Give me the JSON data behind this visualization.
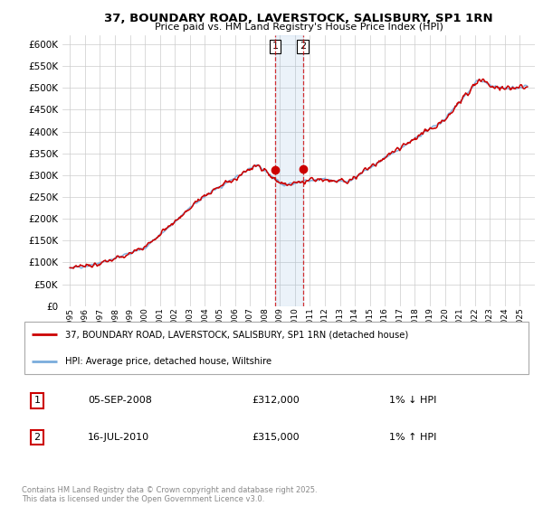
{
  "title": "37, BOUNDARY ROAD, LAVERSTOCK, SALISBURY, SP1 1RN",
  "subtitle": "Price paid vs. HM Land Registry's House Price Index (HPI)",
  "legend_line1": "37, BOUNDARY ROAD, LAVERSTOCK, SALISBURY, SP1 1RN (detached house)",
  "legend_line2": "HPI: Average price, detached house, Wiltshire",
  "annotation1_date": "05-SEP-2008",
  "annotation1_price": "£312,000",
  "annotation1_hpi": "1% ↓ HPI",
  "annotation2_date": "16-JUL-2010",
  "annotation2_price": "£315,000",
  "annotation2_hpi": "1% ↑ HPI",
  "copyright": "Contains HM Land Registry data © Crown copyright and database right 2025.\nThis data is licensed under the Open Government Licence v3.0.",
  "ylim": [
    0,
    620000
  ],
  "yticks": [
    0,
    50000,
    100000,
    150000,
    200000,
    250000,
    300000,
    350000,
    400000,
    450000,
    500000,
    550000,
    600000
  ],
  "hpi_color": "#7aacdc",
  "price_color": "#cc0000",
  "background_color": "#ffffff",
  "grid_color": "#cccccc",
  "sale1_year": 2008.68,
  "sale1_value": 312000,
  "sale2_year": 2010.54,
  "sale2_value": 315000,
  "xlim_left": 1994.5,
  "xlim_right": 2026.0
}
